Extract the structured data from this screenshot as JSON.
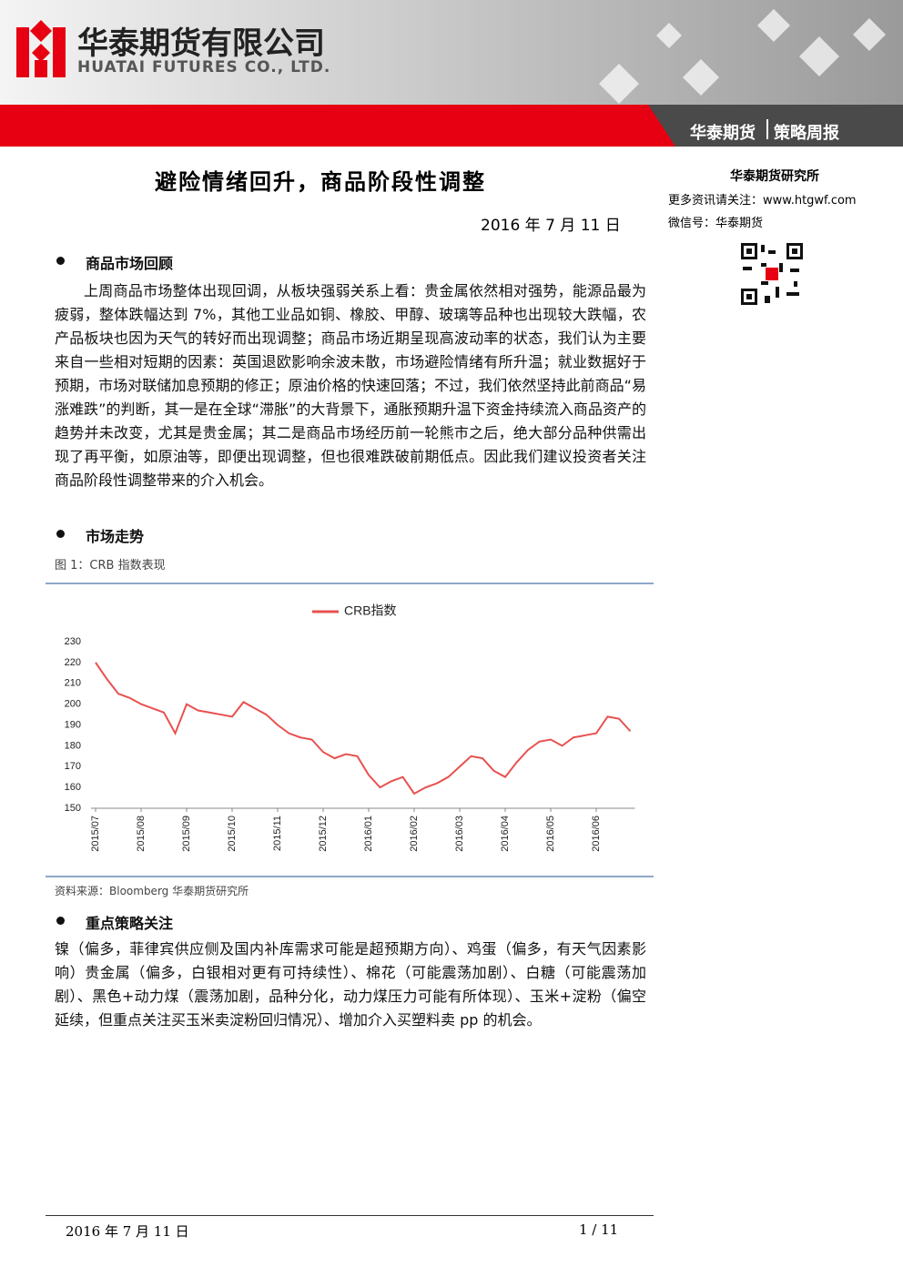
{
  "header": {
    "company_cn": "华泰期货有限公司",
    "company_en": "HUATAI FUTURES CO., LTD.",
    "brand": "华泰期货",
    "report_type": "策略周报"
  },
  "sidebar": {
    "institute": "华泰期货研究所",
    "website": "更多资讯请关注：www.htgwf.com",
    "wechat": "微信号：华泰期货"
  },
  "title": "避险情绪回升，商品阶段性调整",
  "date": "2016 年 7 月 11 日",
  "sections": [
    {
      "heading": "商品市场回顾",
      "text": "上周商品市场整体出现回调，从板块强弱关系上看：贵金属依然相对强势，能源品最为疲弱，整体跌幅达到 7%，其他工业品如铜、橡胶、甲醇、玻璃等品种也出现较大跌幅，农产品板块也因为天气的转好而出现调整；商品市场近期呈现高波动率的状态，我们认为主要来自一些相对短期的因素：英国退欧影响余波未散，市场避险情绪有所升温；就业数据好于预期，市场对联储加息预期的修正；原油价格的快速回落；不过，我们依然坚持此前商品“易涨难跌”的判断，其一是在全球“滞胀”的大背景下，通胀预期升温下资金持续流入商品资产的趋势并未改变，尤其是贵金属；其二是商品市场经历前一轮熊市之后，绝大部分品种供需出现了再平衡，如原油等，即便出现调整，但也很难跌破前期低点。因此我们建议投资者关注商品阶段性调整带来的介入机会。"
    },
    {
      "heading": "市场走势",
      "figure_caption": "图 1：CRB 指数表现",
      "source": "资料来源：Bloomberg 华泰期货研究所"
    },
    {
      "heading": "重点策略关注",
      "text": "镍（偏多，菲律宾供应侧及国内补库需求可能是超预期方向）、鸡蛋（偏多，有天气因素影响）贵金属（偏多，白银相对更有可持续性）、棉花（可能震荡加剧）、白糖（可能震荡加剧）、黑色+动力煤（震荡加剧，品种分化，动力煤压力可能有所体现）、玉米+淀粉（偏空延续，但重点关注买玉米卖淀粉回归情况）、增加介入买塑料卖 pp 的机会。"
    }
  ],
  "footer": {
    "date": "2016 年 7 月 11 日",
    "page": "1 / 11"
  },
  "chart_data": {
    "type": "line",
    "categories": [
      "2015/07",
      null,
      null,
      null,
      "2015/08",
      null,
      null,
      null,
      "2015/09",
      null,
      null,
      null,
      "2015/10",
      null,
      null,
      null,
      "2015/11",
      null,
      null,
      null,
      "2015/12",
      null,
      null,
      null,
      "2016/01",
      null,
      null,
      null,
      "2016/02",
      null,
      null,
      null,
      "2016/03",
      null,
      null,
      null,
      "2016/04",
      null,
      null,
      null,
      "2016/05",
      null,
      null,
      null,
      "2016/06",
      null,
      null,
      null
    ],
    "series": [
      {
        "name": "CRB指数",
        "color": "#e8514f",
        "values": [
          220,
          212,
          205,
          203,
          200,
          198,
          196,
          186,
          200,
          197,
          196,
          195,
          194,
          201,
          198,
          195,
          190,
          186,
          184,
          183,
          177,
          174,
          176,
          175,
          166,
          160,
          163,
          165,
          157,
          160,
          162,
          165,
          170,
          175,
          174,
          168,
          165,
          172,
          178,
          182,
          183,
          180,
          184,
          185,
          186,
          194,
          193,
          187
        ]
      }
    ],
    "ylim": [
      150,
      230
    ],
    "yticks": [
      150,
      160,
      170,
      180,
      190,
      200,
      210,
      220,
      230
    ]
  }
}
